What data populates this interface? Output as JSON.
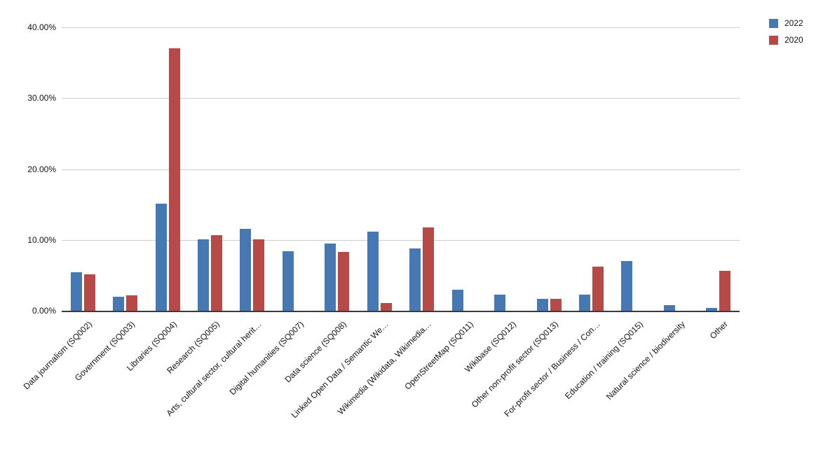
{
  "chart_data": {
    "type": "bar",
    "title": "",
    "xlabel": "",
    "ylabel": "",
    "ylim": [
      0,
      40
    ],
    "grid": true,
    "legend_position": "top-right",
    "y_ticks": [
      0,
      10,
      20,
      30,
      40
    ],
    "y_tick_labels": [
      "0.00%",
      "10.00%",
      "20.00%",
      "30.00%",
      "40.00%"
    ],
    "categories": [
      "Data journalism (SQ002)",
      "Government (SQ003)",
      "Libraries (SQ004)",
      "Research (SQ005)",
      "Arts, cultural sector, cultural herit…",
      "Digital humanities (SQ007)",
      "Data science (SQ008)",
      "Linked Open Data / Semantic We…",
      "Wikimedia (Wikidata, Wikimedia…",
      "OpenStreetMap (SQ011)",
      "Wikibase (SQ012)",
      "Other non-profit sector (SQ013)",
      "For-profit sector / Business / Con…",
      "Education / training (SQ015)",
      "Natural science / biodiversity",
      "Other"
    ],
    "series": [
      {
        "name": "2022",
        "color": "#4678b4",
        "values": [
          5.4,
          2.0,
          15.1,
          10.1,
          11.6,
          8.4,
          9.5,
          11.2,
          8.8,
          3.0,
          2.3,
          1.7,
          2.3,
          7.0,
          0.8,
          0.4
        ]
      },
      {
        "name": "2020",
        "color": "#b54a47",
        "values": [
          5.1,
          2.2,
          37.0,
          10.7,
          10.1,
          0,
          8.3,
          1.1,
          11.8,
          0,
          0,
          1.7,
          6.2,
          0,
          0,
          5.6
        ]
      }
    ]
  }
}
